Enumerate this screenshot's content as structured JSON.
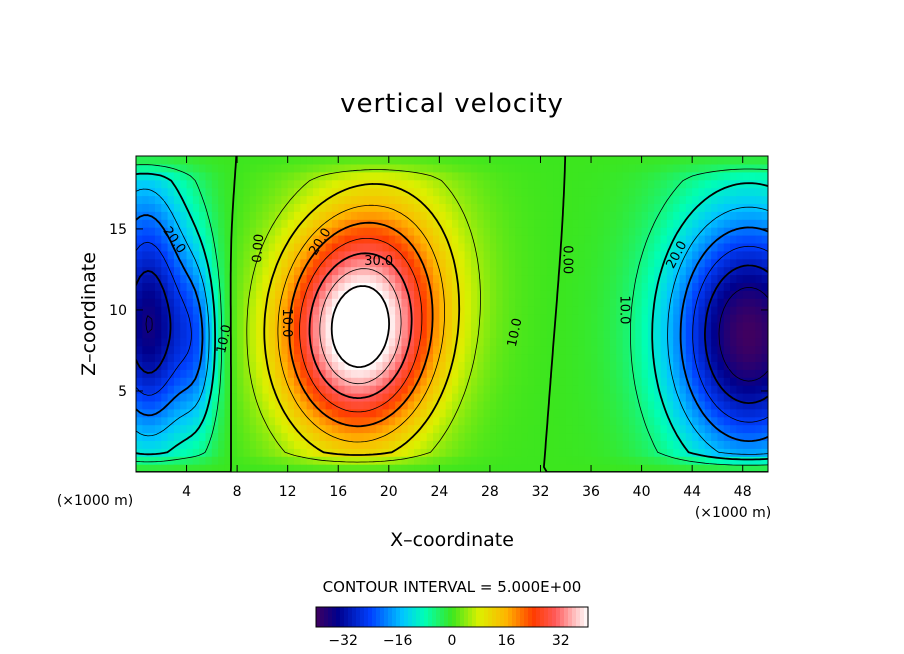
{
  "chart_data": {
    "type": "heatmap",
    "title": "vertical velocity",
    "xlabel": "X–coordinate",
    "ylabel": "Z–coordinate",
    "x_unit_note": "(×1000 m)",
    "z_unit_note": "(×1000 m)",
    "xlim": [
      0,
      50
    ],
    "ylim": [
      0,
      19.5
    ],
    "x_ticks": [
      4,
      8,
      12,
      16,
      20,
      24,
      28,
      32,
      36,
      40,
      44,
      48
    ],
    "y_ticks": [
      5,
      10,
      15
    ],
    "contour_interval_text": "CONTOUR INTERVAL = 5.000E+00",
    "contour_interval": 5,
    "field_range": [
      -40,
      40
    ],
    "features": [
      {
        "name": "updraft core",
        "x": 17.5,
        "z": 8.5,
        "peak": 42
      },
      {
        "name": "left downdraft",
        "x": 1.0,
        "z": 9.0,
        "peak": -35
      },
      {
        "name": "right downdraft",
        "x": 48.5,
        "z": 8.5,
        "peak": -40
      }
    ],
    "contour_labels": [
      {
        "text": "20.0",
        "x": 3.0,
        "z": 14.3,
        "angle": 55
      },
      {
        "text": "10.0",
        "x": 7.0,
        "z": 8.2,
        "angle": -78
      },
      {
        "text": "0.00",
        "x": 9.7,
        "z": 13.8,
        "angle": -85
      },
      {
        "text": "10.0",
        "x": 11.9,
        "z": 9.2,
        "angle": 90
      },
      {
        "text": "20.0",
        "x": 14.6,
        "z": 14.2,
        "angle": -58
      },
      {
        "text": "30.0",
        "x": 19.2,
        "z": 13.0,
        "angle": 0
      },
      {
        "text": "10.0",
        "x": 30.0,
        "z": 8.6,
        "angle": -78
      },
      {
        "text": "0.00",
        "x": 34.1,
        "z": 13.1,
        "angle": 90
      },
      {
        "text": "10.0",
        "x": 38.6,
        "z": 10.0,
        "angle": 90
      },
      {
        "text": "20.0",
        "x": 42.8,
        "z": 13.4,
        "angle": -62
      }
    ],
    "colorbar": {
      "ticks": [
        -32,
        -16,
        0,
        16,
        32
      ],
      "tick_labels": [
        "−32",
        "−16",
        "0",
        "16",
        "32"
      ],
      "range": [
        -40,
        40
      ]
    }
  }
}
